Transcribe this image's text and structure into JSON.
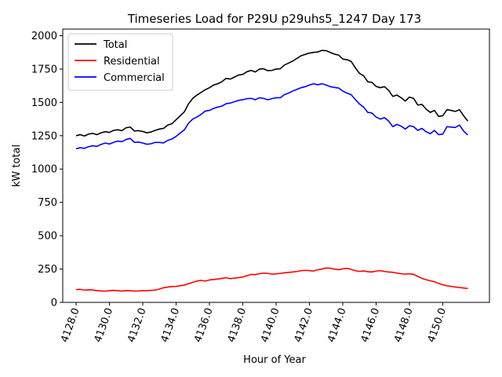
{
  "chart_data": {
    "type": "line",
    "title": "Timeseries Load for P29U p29uhs5_1247  Day 173",
    "xlabel": "Hour of Year",
    "ylabel": "kW total",
    "xlim": [
      4127.2,
      4152.8
    ],
    "ylim": [
      0,
      2050
    ],
    "x_ticks": [
      4128,
      4130,
      4132,
      4134,
      4136,
      4138,
      4140,
      4142,
      4144,
      4146,
      4148,
      4150
    ],
    "x_tick_labels": [
      "4128.0",
      "4130.0",
      "4132.0",
      "4134.0",
      "4136.0",
      "4138.0",
      "4140.0",
      "4142.0",
      "4144.0",
      "4146.0",
      "4148.0",
      "4150.0"
    ],
    "y_ticks": [
      0,
      250,
      500,
      750,
      1000,
      1250,
      1500,
      1750,
      2000
    ],
    "y_tick_labels": [
      "0",
      "250",
      "500",
      "750",
      "1000",
      "1250",
      "1500",
      "1750",
      "2000"
    ],
    "legend_position": "top-left",
    "x_start": 4128.0,
    "x_step": 0.25,
    "series": [
      {
        "name": "Total",
        "color": "#000000",
        "values": [
          1250,
          1258,
          1248,
          1262,
          1268,
          1258,
          1272,
          1280,
          1275,
          1290,
          1295,
          1288,
          1310,
          1315,
          1285,
          1288,
          1282,
          1272,
          1278,
          1290,
          1300,
          1305,
          1330,
          1340,
          1370,
          1400,
          1430,
          1490,
          1530,
          1555,
          1575,
          1595,
          1610,
          1630,
          1640,
          1655,
          1680,
          1675,
          1690,
          1705,
          1710,
          1730,
          1740,
          1728,
          1750,
          1752,
          1738,
          1740,
          1750,
          1752,
          1780,
          1795,
          1810,
          1830,
          1850,
          1860,
          1870,
          1875,
          1878,
          1890,
          1888,
          1875,
          1862,
          1855,
          1825,
          1820,
          1808,
          1760,
          1718,
          1700,
          1655,
          1650,
          1620,
          1610,
          1618,
          1590,
          1545,
          1555,
          1535,
          1510,
          1540,
          1530,
          1480,
          1485,
          1450,
          1425,
          1440,
          1395,
          1400,
          1445,
          1440,
          1432,
          1445,
          1400,
          1360
        ]
      },
      {
        "name": "Residential",
        "color": "#ff0000",
        "values": [
          96,
          98,
          92,
          94,
          93,
          88,
          86,
          84,
          88,
          90,
          88,
          85,
          88,
          87,
          85,
          86,
          88,
          88,
          90,
          92,
          100,
          110,
          115,
          118,
          120,
          125,
          130,
          140,
          150,
          160,
          165,
          160,
          168,
          172,
          175,
          180,
          185,
          178,
          182,
          186,
          190,
          200,
          210,
          208,
          215,
          220,
          218,
          212,
          214,
          218,
          222,
          225,
          228,
          232,
          238,
          240,
          238,
          235,
          245,
          250,
          258,
          256,
          250,
          245,
          252,
          255,
          248,
          238,
          232,
          236,
          230,
          228,
          235,
          238,
          232,
          228,
          226,
          220,
          215,
          212,
          215,
          210,
          195,
          180,
          170,
          162,
          155,
          142,
          132,
          125,
          120,
          115,
          112,
          108,
          104
        ]
      },
      {
        "name": "Commercial",
        "color": "#0000ff",
        "values": [
          1152,
          1160,
          1155,
          1168,
          1175,
          1170,
          1185,
          1195,
          1188,
          1200,
          1210,
          1205,
          1222,
          1230,
          1200,
          1202,
          1195,
          1186,
          1190,
          1200,
          1200,
          1196,
          1215,
          1225,
          1245,
          1270,
          1295,
          1345,
          1375,
          1390,
          1410,
          1435,
          1440,
          1455,
          1465,
          1472,
          1490,
          1495,
          1505,
          1515,
          1520,
          1528,
          1530,
          1520,
          1535,
          1530,
          1520,
          1528,
          1535,
          1535,
          1558,
          1570,
          1585,
          1598,
          1610,
          1618,
          1630,
          1640,
          1632,
          1640,
          1630,
          1618,
          1612,
          1608,
          1585,
          1570,
          1558,
          1522,
          1488,
          1465,
          1425,
          1420,
          1390,
          1375,
          1386,
          1360,
          1318,
          1335,
          1322,
          1300,
          1325,
          1318,
          1290,
          1305,
          1280,
          1265,
          1290,
          1258,
          1262,
          1318,
          1315,
          1312,
          1330,
          1285,
          1256
        ]
      }
    ]
  }
}
